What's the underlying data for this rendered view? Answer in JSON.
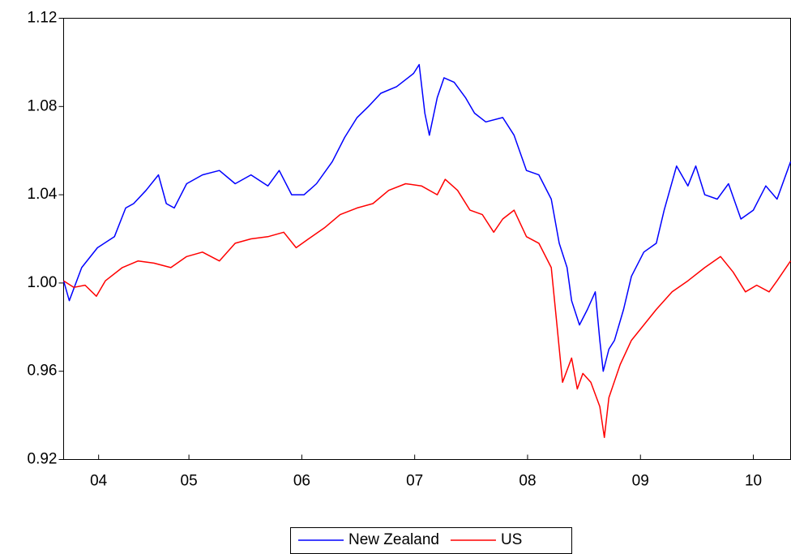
{
  "chart_data": {
    "type": "line",
    "xlim": [
      2004.39,
      2010.83
    ],
    "xticks": [
      {
        "value": 2004.7,
        "label": "04"
      },
      {
        "value": 2005.5,
        "label": "05"
      },
      {
        "value": 2006.5,
        "label": "06"
      },
      {
        "value": 2007.5,
        "label": "07"
      },
      {
        "value": 2008.5,
        "label": "08"
      },
      {
        "value": 2009.5,
        "label": "09"
      },
      {
        "value": 2010.5,
        "label": "10"
      }
    ],
    "ylim": [
      0.92,
      1.12
    ],
    "yticks": [
      0.92,
      0.96,
      {
        "value": 1,
        "label": "1.00"
      },
      1.04,
      1.08,
      1.12
    ],
    "legend": "bottom",
    "series": [
      {
        "name": "New Zealand",
        "color": "#0000ff",
        "x": [
          2004.39,
          2004.44,
          2004.55,
          2004.69,
          2004.84,
          2004.94,
          2005.01,
          2005.12,
          2005.23,
          2005.3,
          2005.37,
          2005.48,
          2005.62,
          2005.77,
          2005.91,
          2006.05,
          2006.2,
          2006.3,
          2006.41,
          2006.52,
          2006.63,
          2006.77,
          2006.88,
          2006.99,
          2007.09,
          2007.2,
          2007.34,
          2007.49,
          2007.54,
          2007.59,
          2007.63,
          2007.7,
          2007.76,
          2007.85,
          2007.95,
          2008.03,
          2008.13,
          2008.28,
          2008.38,
          2008.49,
          2008.6,
          2008.71,
          2008.78,
          2008.85,
          2008.89,
          2008.96,
          2009.03,
          2009.1,
          2009.14,
          2009.17,
          2009.22,
          2009.27,
          2009.35,
          2009.42,
          2009.53,
          2009.64,
          2009.71,
          2009.82,
          2009.92,
          2009.99,
          2010.07,
          2010.18,
          2010.28,
          2010.39,
          2010.5,
          2010.61,
          2010.71,
          2010.83
        ],
        "values": [
          1.001,
          0.992,
          1.007,
          1.016,
          1.021,
          1.034,
          1.036,
          1.042,
          1.049,
          1.036,
          1.034,
          1.045,
          1.049,
          1.051,
          1.045,
          1.049,
          1.044,
          1.051,
          1.04,
          1.04,
          1.045,
          1.055,
          1.066,
          1.075,
          1.08,
          1.086,
          1.089,
          1.095,
          1.099,
          1.077,
          1.067,
          1.084,
          1.093,
          1.091,
          1.084,
          1.077,
          1.073,
          1.075,
          1.067,
          1.051,
          1.049,
          1.038,
          1.018,
          1.007,
          0.992,
          0.981,
          0.988,
          0.996,
          0.974,
          0.96,
          0.97,
          0.974,
          0.988,
          1.003,
          1.014,
          1.018,
          1.033,
          1.053,
          1.044,
          1.053,
          1.04,
          1.038,
          1.045,
          1.029,
          1.033,
          1.044,
          1.038,
          1.055
        ]
      },
      {
        "name": "US",
        "color": "#ff0000",
        "x": [
          2004.39,
          2004.48,
          2004.58,
          2004.68,
          2004.76,
          2004.91,
          2005.05,
          2005.19,
          2005.34,
          2005.48,
          2005.62,
          2005.77,
          2005.91,
          2006.05,
          2006.2,
          2006.34,
          2006.45,
          2006.56,
          2006.7,
          2006.84,
          2006.99,
          2007.13,
          2007.27,
          2007.42,
          2007.56,
          2007.7,
          2007.77,
          2007.88,
          2007.99,
          2008.1,
          2008.2,
          2008.28,
          2008.38,
          2008.49,
          2008.6,
          2008.71,
          2008.76,
          2008.81,
          2008.89,
          2008.94,
          2008.99,
          2009.06,
          2009.14,
          2009.18,
          2009.22,
          2009.32,
          2009.42,
          2009.53,
          2009.64,
          2009.78,
          2009.92,
          2010.07,
          2010.21,
          2010.32,
          2010.43,
          2010.53,
          2010.64,
          2010.71,
          2010.83
        ],
        "values": [
          1.001,
          0.998,
          0.999,
          0.994,
          1.001,
          1.007,
          1.01,
          1.009,
          1.007,
          1.012,
          1.014,
          1.01,
          1.018,
          1.02,
          1.021,
          1.023,
          1.016,
          1.02,
          1.025,
          1.031,
          1.034,
          1.036,
          1.042,
          1.045,
          1.044,
          1.04,
          1.047,
          1.042,
          1.033,
          1.031,
          1.023,
          1.029,
          1.033,
          1.021,
          1.018,
          1.007,
          0.981,
          0.955,
          0.966,
          0.952,
          0.959,
          0.955,
          0.944,
          0.93,
          0.948,
          0.963,
          0.974,
          0.981,
          0.988,
          0.996,
          1.001,
          1.007,
          1.012,
          1.005,
          0.996,
          0.999,
          0.996,
          1.001,
          1.01
        ]
      }
    ]
  }
}
